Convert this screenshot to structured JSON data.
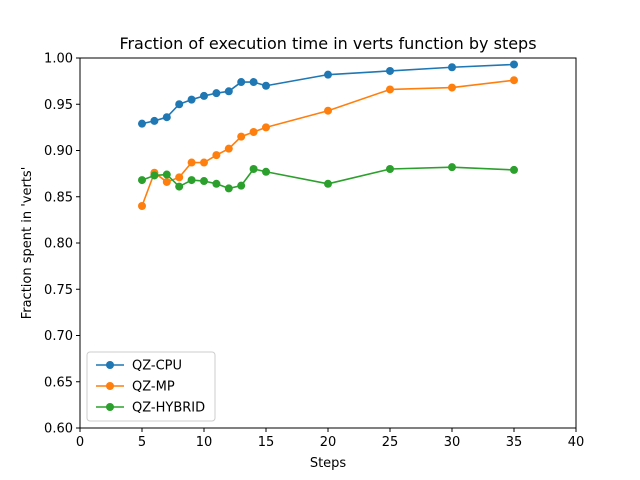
{
  "chart_data": {
    "type": "line",
    "title": "Fraction of execution time in verts function by steps",
    "xlabel": "Steps",
    "ylabel": "Fraction spent in 'verts'",
    "xlim": [
      0,
      40
    ],
    "ylim": [
      0.6,
      1.0
    ],
    "xticks": [
      "0",
      "5",
      "10",
      "15",
      "20",
      "25",
      "30",
      "35",
      "40"
    ],
    "yticks": [
      "0.60",
      "0.65",
      "0.70",
      "0.75",
      "0.80",
      "0.85",
      "0.90",
      "0.95",
      "1.00"
    ],
    "grid": false,
    "legend_position": "lower-left",
    "x": [
      5,
      6,
      7,
      8,
      9,
      10,
      11,
      12,
      13,
      14,
      15,
      20,
      25,
      30,
      35
    ],
    "series": [
      {
        "name": "QZ-CPU",
        "color": "#1f77b4",
        "values": [
          0.929,
          0.932,
          0.936,
          0.95,
          0.955,
          0.959,
          0.962,
          0.964,
          0.974,
          0.974,
          0.97,
          0.982,
          0.986,
          0.99,
          0.993
        ]
      },
      {
        "name": "QZ-MP",
        "color": "#ff7f0e",
        "values": [
          0.84,
          0.876,
          0.866,
          0.871,
          0.887,
          0.887,
          0.895,
          0.902,
          0.915,
          0.92,
          0.925,
          0.943,
          0.966,
          0.968,
          0.976
        ]
      },
      {
        "name": "QZ-HYBRID",
        "color": "#2ca02c",
        "values": [
          0.868,
          0.873,
          0.874,
          0.861,
          0.868,
          0.867,
          0.864,
          0.859,
          0.862,
          0.88,
          0.877,
          0.864,
          0.88,
          0.882,
          0.879
        ]
      }
    ]
  }
}
